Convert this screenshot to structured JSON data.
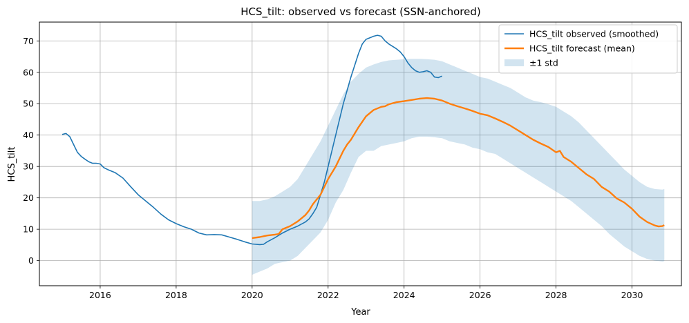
{
  "chart_data": {
    "type": "line",
    "title": "HCS_tilt: observed vs forecast (SSN-anchored)",
    "xlabel": "Year",
    "ylabel": "HCS_tilt",
    "xlim": [
      2014.4,
      2031.3
    ],
    "ylim": [
      -8,
      76
    ],
    "xticks": [
      2016,
      2018,
      2020,
      2022,
      2024,
      2026,
      2028,
      2030
    ],
    "yticks": [
      0,
      10,
      20,
      30,
      40,
      50,
      60,
      70
    ],
    "grid": true,
    "legend_position": "top-right",
    "legend": [
      "HCS_tilt observed (smoothed)",
      "HCS_tilt forecast (mean)",
      "±1 std"
    ],
    "colors": {
      "observed": "#1f77b4",
      "forecast": "#ff7f0e",
      "band": "#1f77b4"
    },
    "series": [
      {
        "name": "HCS_tilt observed (smoothed)",
        "x": [
          2015.0,
          2015.1,
          2015.2,
          2015.3,
          2015.4,
          2015.5,
          2015.6,
          2015.7,
          2015.8,
          2015.9,
          2016.0,
          2016.1,
          2016.2,
          2016.4,
          2016.6,
          2016.8,
          2017.0,
          2017.2,
          2017.4,
          2017.6,
          2017.8,
          2018.0,
          2018.2,
          2018.4,
          2018.6,
          2018.8,
          2019.0,
          2019.2,
          2019.4,
          2019.6,
          2019.8,
          2020.0,
          2020.2,
          2020.3,
          2020.4,
          2020.6,
          2020.8,
          2021.0,
          2021.2,
          2021.4,
          2021.5,
          2021.6,
          2021.7,
          2021.8,
          2021.9,
          2022.0,
          2022.2,
          2022.4,
          2022.6,
          2022.8,
          2022.9,
          2023.0,
          2023.2,
          2023.3,
          2023.4,
          2023.5,
          2023.6,
          2023.8,
          2023.9,
          2024.0,
          2024.1,
          2024.2,
          2024.3,
          2024.4,
          2024.5,
          2024.6,
          2024.7,
          2024.8,
          2024.9,
          2025.0
        ],
        "y": [
          40.2,
          40.5,
          39.5,
          37.0,
          34.5,
          33.2,
          32.3,
          31.5,
          31.0,
          31.0,
          30.8,
          29.6,
          29.0,
          28.0,
          26.3,
          23.6,
          21.0,
          19.0,
          17.0,
          14.8,
          13.0,
          11.8,
          10.8,
          10.0,
          8.8,
          8.2,
          8.3,
          8.2,
          7.5,
          6.8,
          6.0,
          5.3,
          5.1,
          5.2,
          6.0,
          7.3,
          8.8,
          10.0,
          11.0,
          12.3,
          13.3,
          15.0,
          17.0,
          21.0,
          25.0,
          30.0,
          40.0,
          50.0,
          58.5,
          66.0,
          69.0,
          70.5,
          71.5,
          71.8,
          71.5,
          70.0,
          69.0,
          67.5,
          66.5,
          65.0,
          63.0,
          61.5,
          60.5,
          60.0,
          60.2,
          60.5,
          60.0,
          58.5,
          58.3,
          58.8
        ]
      },
      {
        "name": "HCS_tilt forecast (mean)",
        "x": [
          2020.0,
          2020.2,
          2020.4,
          2020.6,
          2020.7,
          2020.8,
          2021.0,
          2021.2,
          2021.4,
          2021.5,
          2021.6,
          2021.8,
          2022.0,
          2022.2,
          2022.4,
          2022.5,
          2022.6,
          2022.8,
          2023.0,
          2023.2,
          2023.4,
          2023.5,
          2023.6,
          2023.8,
          2024.0,
          2024.2,
          2024.4,
          2024.6,
          2024.8,
          2025.0,
          2025.2,
          2025.4,
          2025.6,
          2025.8,
          2026.0,
          2026.2,
          2026.4,
          2026.6,
          2026.8,
          2027.0,
          2027.2,
          2027.4,
          2027.6,
          2027.8,
          2028.0,
          2028.1,
          2028.2,
          2028.4,
          2028.6,
          2028.8,
          2029.0,
          2029.2,
          2029.4,
          2029.6,
          2029.8,
          2030.0,
          2030.2,
          2030.4,
          2030.6,
          2030.7,
          2030.8,
          2030.85
        ],
        "y": [
          7.2,
          7.5,
          8.0,
          8.3,
          8.5,
          10.0,
          11.0,
          12.5,
          14.5,
          16.0,
          18.0,
          21.0,
          26.0,
          30.0,
          35.0,
          37.0,
          38.5,
          42.5,
          46.0,
          48.0,
          49.0,
          49.2,
          49.8,
          50.5,
          50.8,
          51.2,
          51.6,
          51.8,
          51.6,
          51.0,
          50.0,
          49.2,
          48.5,
          47.7,
          46.8,
          46.3,
          45.3,
          44.2,
          43.0,
          41.5,
          40.0,
          38.5,
          37.3,
          36.2,
          34.5,
          35.0,
          33.0,
          31.5,
          29.5,
          27.5,
          26.0,
          23.5,
          22.0,
          19.8,
          18.5,
          16.5,
          14.0,
          12.3,
          11.2,
          10.9,
          11.0,
          11.3
        ]
      }
    ],
    "band": {
      "name": "±1 std",
      "x": [
        2020.0,
        2020.2,
        2020.4,
        2020.6,
        2020.8,
        2021.0,
        2021.2,
        2021.4,
        2021.6,
        2021.8,
        2022.0,
        2022.2,
        2022.4,
        2022.6,
        2022.8,
        2023.0,
        2023.2,
        2023.4,
        2023.6,
        2023.8,
        2024.0,
        2024.2,
        2024.4,
        2024.6,
        2024.8,
        2025.0,
        2025.2,
        2025.4,
        2025.6,
        2025.8,
        2026.0,
        2026.2,
        2026.4,
        2026.6,
        2026.8,
        2027.0,
        2027.2,
        2027.4,
        2027.6,
        2027.8,
        2028.0,
        2028.2,
        2028.4,
        2028.6,
        2028.8,
        2029.0,
        2029.2,
        2029.4,
        2029.6,
        2029.8,
        2030.0,
        2030.2,
        2030.4,
        2030.6,
        2030.8,
        2030.85
      ],
      "upper": [
        19.0,
        19.0,
        19.5,
        20.5,
        22.0,
        23.5,
        26.0,
        30.0,
        34.0,
        38.0,
        43.0,
        48.0,
        53.0,
        57.0,
        59.5,
        61.5,
        62.5,
        63.3,
        63.8,
        64.0,
        64.2,
        64.3,
        64.3,
        64.2,
        64.0,
        63.5,
        62.5,
        61.5,
        60.5,
        59.5,
        58.5,
        58.0,
        57.0,
        56.0,
        55.0,
        53.5,
        52.0,
        51.0,
        50.5,
        49.8,
        49.0,
        47.5,
        46.0,
        44.0,
        41.5,
        39.0,
        36.5,
        34.0,
        31.5,
        29.0,
        27.0,
        25.0,
        23.5,
        22.8,
        22.6,
        22.8
      ],
      "lower": [
        -4.5,
        -3.5,
        -2.5,
        -1.0,
        -0.5,
        0.0,
        1.5,
        4.0,
        6.5,
        9.0,
        13.0,
        18.5,
        22.5,
        28.0,
        33.0,
        35.0,
        35.0,
        36.5,
        37.0,
        37.5,
        38.0,
        39.0,
        39.5,
        39.5,
        39.3,
        39.0,
        38.0,
        37.5,
        37.0,
        36.0,
        35.5,
        34.5,
        34.0,
        32.5,
        31.0,
        29.5,
        28.0,
        26.5,
        25.0,
        23.5,
        22.0,
        20.5,
        19.0,
        17.0,
        15.0,
        13.0,
        11.0,
        8.5,
        6.5,
        4.5,
        3.0,
        1.5,
        0.5,
        0.0,
        -0.3,
        -0.2
      ]
    }
  }
}
